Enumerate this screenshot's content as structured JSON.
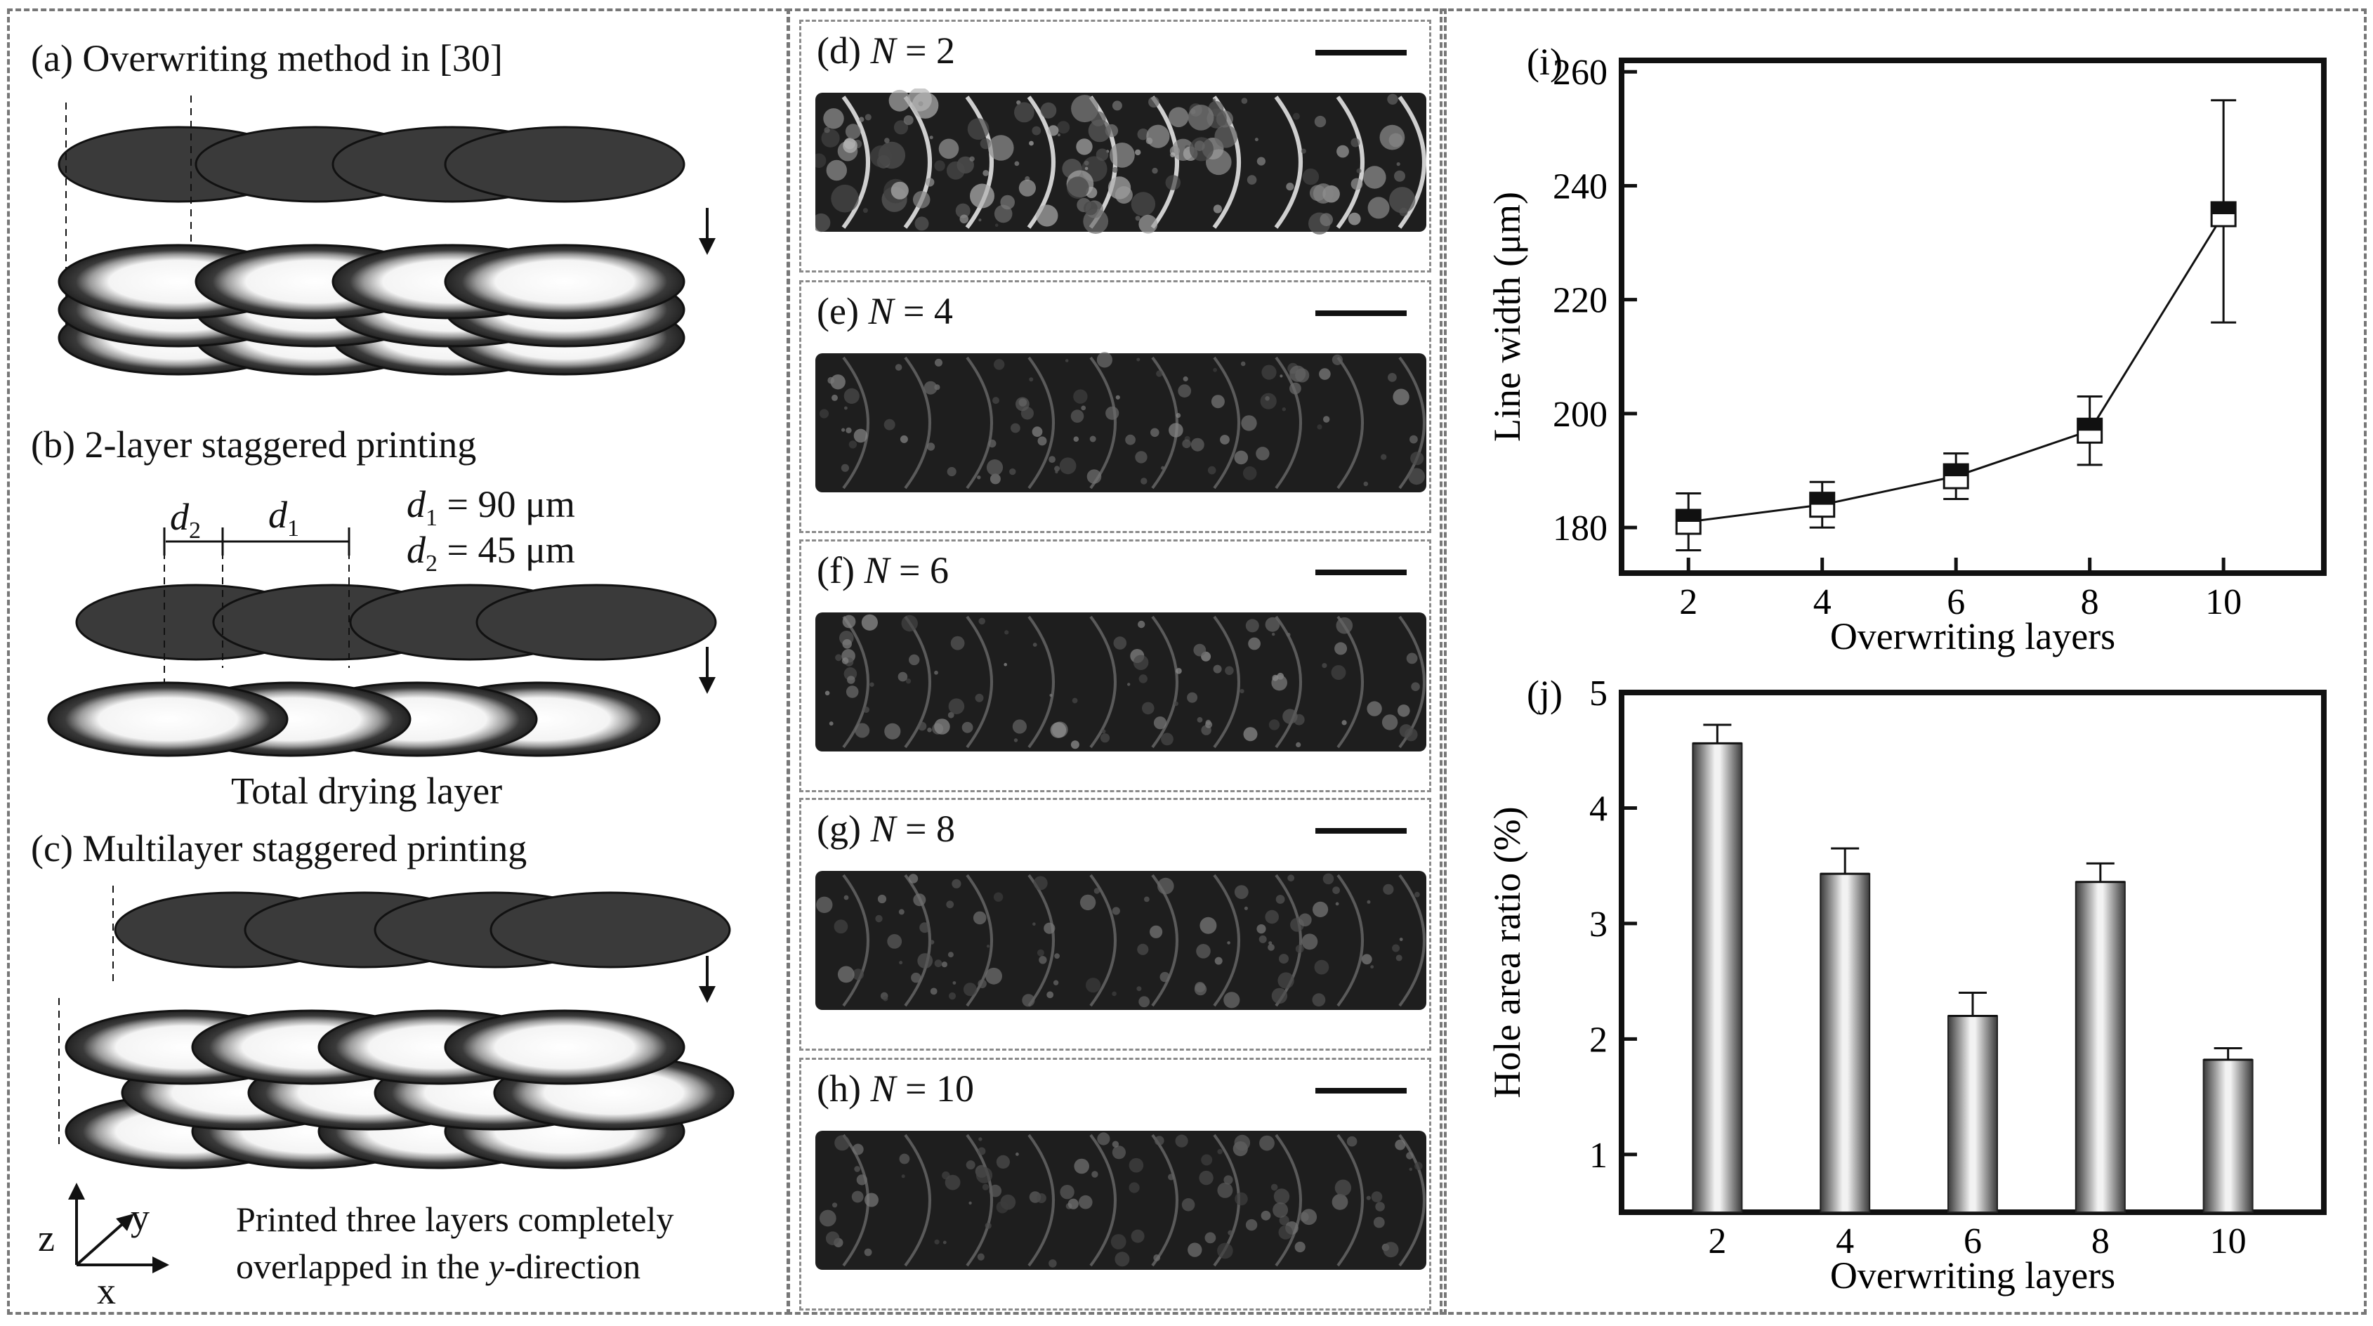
{
  "left_panel": {
    "a_label": "(a) Overwriting method in [30]",
    "b_label": "(b) 2-layer staggered printing",
    "c_label": "(c) Multilayer staggered printing",
    "d1_symbol": "d",
    "d1_sub": "1",
    "d2_symbol": "d",
    "d2_sub": "2",
    "d1_value": " = 90 μm",
    "d2_value": " = 45 μm",
    "total_drying": "Total drying layer",
    "axis_z": "z",
    "axis_y": "y",
    "axis_x": "x",
    "note_line1": "Printed three layers completely",
    "note_line2_prefix": "overlapped in the ",
    "note_line2_italic": "y",
    "note_line2_suffix": "-direction"
  },
  "micrographs": [
    {
      "prefix": "(d) ",
      "n": "N",
      "eq": " = 2"
    },
    {
      "prefix": "(e) ",
      "n": "N",
      "eq": " = 4"
    },
    {
      "prefix": "(f) ",
      "n": "N",
      "eq": " = 6"
    },
    {
      "prefix": "(g) ",
      "n": "N",
      "eq": " = 8"
    },
    {
      "prefix": "(h) ",
      "n": "N",
      "eq": " = 10"
    }
  ],
  "chart_data": [
    {
      "panel": "(i)",
      "type": "line",
      "x": [
        2,
        4,
        6,
        8,
        10
      ],
      "y": [
        181,
        184,
        189,
        197,
        235
      ],
      "y_err_low": [
        176,
        180,
        185,
        191,
        216
      ],
      "y_err_high": [
        186,
        188,
        193,
        203,
        255
      ],
      "xlabel": "Overwriting layers",
      "ylabel": "Line width (μm)",
      "xlim": [
        1,
        11.5
      ],
      "ylim": [
        172,
        262
      ],
      "xticks": [
        2,
        4,
        6,
        8,
        10
      ],
      "yticks": [
        180,
        200,
        220,
        240,
        260
      ],
      "grid": false
    },
    {
      "panel": "(j)",
      "type": "bar",
      "categories": [
        "2",
        "4",
        "6",
        "8",
        "10"
      ],
      "values": [
        4.56,
        3.43,
        2.2,
        3.36,
        1.82
      ],
      "err_high": [
        4.72,
        3.65,
        2.4,
        3.52,
        1.92
      ],
      "xlabel": "Overwriting layers",
      "ylabel": "Hole area ratio (%)",
      "ylim": [
        0.5,
        5
      ],
      "yticks": [
        1,
        2,
        3,
        4,
        5
      ],
      "grid": false
    }
  ],
  "colors": {
    "ink": "#111111",
    "panel_border": "#777777"
  }
}
